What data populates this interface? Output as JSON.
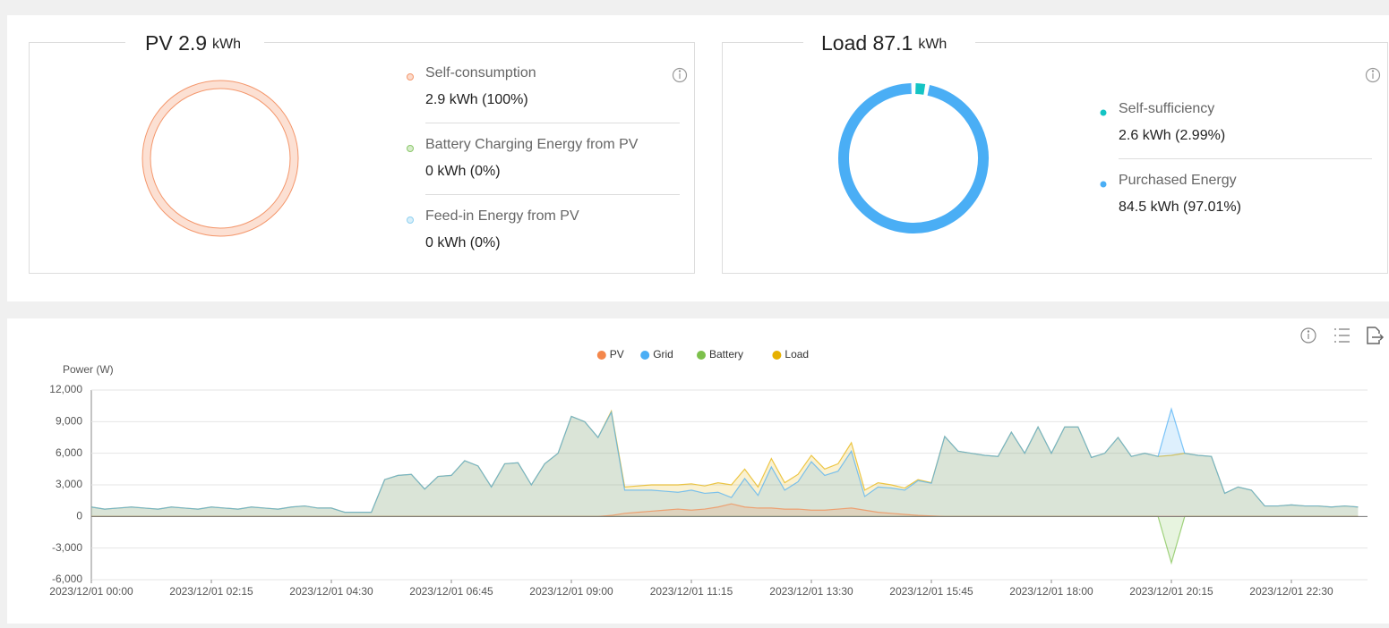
{
  "chart_data": [
    {
      "type": "pie",
      "title": "PV 2.9",
      "unit": "kWh",
      "categories": [
        "Self-consumption",
        "Battery Charging Energy from PV",
        "Feed-in Energy from PV"
      ],
      "values": [
        100,
        0,
        0
      ],
      "value_labels": [
        "2.9 kWh (100%)",
        "0 kWh (0%)",
        "0 kWh (0%)"
      ],
      "colors": [
        "#f4976c",
        "#8bc86a",
        "#8fd0f0"
      ]
    },
    {
      "type": "pie",
      "title": "Load 87.1",
      "unit": "kWh",
      "categories": [
        "Self-sufficiency",
        "Purchased Energy"
      ],
      "values": [
        2.99,
        97.01
      ],
      "value_labels": [
        "2.6 kWh (2.99%)",
        "84.5 kWh (97.01%)"
      ],
      "colors": [
        "#14c4c4",
        "#4aaef5"
      ]
    },
    {
      "type": "area",
      "ylabel": "Power (W)",
      "categories": [
        "2023/12/01 00:00",
        null,
        null,
        null,
        null,
        null,
        null,
        null,
        null,
        "2023/12/01 02:15",
        null,
        null,
        null,
        null,
        null,
        null,
        null,
        null,
        "2023/12/01 04:30",
        null,
        null,
        null,
        null,
        null,
        null,
        null,
        null,
        "2023/12/01 06:45",
        null,
        null,
        null,
        null,
        null,
        null,
        null,
        null,
        "2023/12/01 09:00",
        null,
        null,
        null,
        null,
        null,
        null,
        null,
        null,
        "2023/12/01 11:15",
        null,
        null,
        null,
        null,
        null,
        null,
        null,
        null,
        "2023/12/01 13:30",
        null,
        null,
        null,
        null,
        null,
        null,
        null,
        null,
        "2023/12/01 15:45",
        null,
        null,
        null,
        null,
        null,
        null,
        null,
        null,
        "2023/12/01 18:00",
        null,
        null,
        null,
        null,
        null,
        null,
        null,
        null,
        "2023/12/01 20:15",
        null,
        null,
        null,
        null,
        null,
        null,
        null,
        null,
        "2023/12/01 22:30",
        null,
        null,
        null,
        null,
        null
      ],
      "series": [
        {
          "name": "Load",
          "color": "#e6b000",
          "values": [
            900,
            700,
            800,
            900,
            800,
            700,
            900,
            800,
            700,
            900,
            800,
            700,
            900,
            800,
            700,
            900,
            1000,
            800,
            800,
            400,
            400,
            400,
            3500,
            3900,
            4000,
            2600,
            3800,
            3900,
            5300,
            4800,
            2800,
            5000,
            5100,
            3000,
            5000,
            6000,
            9500,
            9000,
            7500,
            10000,
            2800,
            2900,
            3000,
            3000,
            3000,
            3100,
            2900,
            3200,
            3000,
            4500,
            2800,
            5500,
            3200,
            4000,
            5800,
            4500,
            5000,
            7000,
            2500,
            3200,
            3000,
            2700,
            3500,
            3200,
            7600,
            6200,
            6000,
            5800,
            5700,
            8000,
            6000,
            8500,
            6000,
            8500,
            8500,
            5600,
            6000,
            7500,
            5700,
            6000,
            5700,
            5800,
            6000,
            5800,
            5700,
            2200,
            2800,
            2500,
            1000,
            1000,
            1100,
            1000,
            1000,
            900,
            1000,
            900
          ]
        },
        {
          "name": "Grid",
          "color": "#4aaef5",
          "values": [
            900,
            700,
            800,
            900,
            800,
            700,
            900,
            800,
            700,
            900,
            800,
            700,
            900,
            800,
            700,
            900,
            1000,
            800,
            800,
            400,
            400,
            400,
            3500,
            3900,
            4000,
            2600,
            3800,
            3900,
            5300,
            4800,
            2800,
            5000,
            5100,
            3000,
            5000,
            6000,
            9500,
            9000,
            7500,
            9900,
            2500,
            2500,
            2500,
            2400,
            2300,
            2500,
            2200,
            2300,
            1800,
            3600,
            2000,
            4700,
            2500,
            3300,
            5200,
            3900,
            4300,
            6200,
            1900,
            2800,
            2700,
            2500,
            3400,
            3150,
            7600,
            6200,
            6000,
            5800,
            5700,
            8000,
            6000,
            8500,
            6000,
            8500,
            8500,
            5600,
            6000,
            7500,
            5700,
            6000,
            5700,
            10200,
            6000,
            5800,
            5700,
            2200,
            2800,
            2500,
            1000,
            1000,
            1100,
            1000,
            1000,
            900,
            1000,
            900
          ]
        },
        {
          "name": "Battery",
          "color": "#7cc04b",
          "values": [
            0,
            0,
            0,
            0,
            0,
            0,
            0,
            0,
            0,
            0,
            0,
            0,
            0,
            0,
            0,
            0,
            0,
            0,
            0,
            0,
            0,
            0,
            0,
            0,
            0,
            0,
            0,
            0,
            0,
            0,
            0,
            0,
            0,
            0,
            0,
            0,
            0,
            0,
            0,
            0,
            0,
            0,
            0,
            0,
            0,
            0,
            0,
            0,
            0,
            0,
            0,
            0,
            0,
            0,
            0,
            0,
            0,
            0,
            0,
            0,
            0,
            0,
            0,
            0,
            0,
            0,
            0,
            0,
            0,
            0,
            0,
            0,
            0,
            0,
            0,
            0,
            0,
            0,
            0,
            0,
            0,
            -4400,
            0,
            0,
            0,
            0,
            0,
            0,
            0,
            0,
            0,
            0,
            0,
            0,
            0,
            0
          ]
        },
        {
          "name": "PV",
          "color": "#f4874b",
          "values": [
            0,
            0,
            0,
            0,
            0,
            0,
            0,
            0,
            0,
            0,
            0,
            0,
            0,
            0,
            0,
            0,
            0,
            0,
            0,
            0,
            0,
            0,
            0,
            0,
            0,
            0,
            0,
            0,
            0,
            0,
            0,
            0,
            0,
            0,
            0,
            0,
            0,
            0,
            0,
            100,
            300,
            400,
            500,
            600,
            700,
            600,
            700,
            900,
            1200,
            900,
            800,
            800,
            700,
            700,
            600,
            600,
            700,
            800,
            600,
            400,
            300,
            200,
            100,
            50,
            0,
            0,
            0,
            0,
            0,
            0,
            0,
            0,
            0,
            0,
            0,
            0,
            0,
            0,
            0,
            0,
            0,
            0,
            0,
            0,
            0,
            0,
            0,
            0,
            0,
            0,
            0,
            0,
            0,
            0,
            0,
            0
          ]
        }
      ],
      "legend_order": [
        "PV",
        "Grid",
        "Battery",
        "Load"
      ],
      "ylim": [
        -6000,
        12000
      ],
      "yticks": [
        {
          "value": -6000,
          "label": "-6,000"
        },
        {
          "value": -3000,
          "label": "-3,000"
        },
        0,
        {
          "value": 3000,
          "label": "3,000"
        },
        {
          "value": 6000,
          "label": "6,000"
        },
        {
          "value": 9000,
          "label": "9,000"
        },
        {
          "value": 12000,
          "label": "12,000"
        }
      ],
      "grid": true,
      "legend": "top"
    }
  ]
}
